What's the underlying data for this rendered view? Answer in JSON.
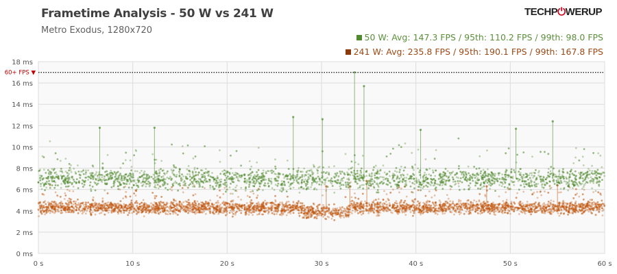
{
  "header": {
    "title": "Frametime Analysis - 50 W vs 241 W",
    "subtitle": "Metro  Exodus, 1280x720",
    "logo": "TECHPOWERUP"
  },
  "colors": {
    "s50": "#4f8a2e",
    "s241": "#c0560f",
    "legend241": "#8b3a0e",
    "fps_line": "#c00000",
    "grid": "#dcdcdc"
  },
  "chart_data": {
    "type": "scatter",
    "title": "Frametime Analysis - 50 W vs 241 W",
    "xlabel": "",
    "ylabel": "",
    "xlim": [
      0,
      60
    ],
    "ylim": [
      0,
      18
    ],
    "x_ticks": [
      0,
      10,
      20,
      30,
      40,
      50,
      60
    ],
    "x_tick_labels": [
      "0 s",
      "10 s",
      "20 s",
      "30 s",
      "40 s",
      "50 s",
      "60 s"
    ],
    "y_ticks": [
      0,
      2,
      4,
      6,
      8,
      10,
      12,
      14,
      16,
      18
    ],
    "y_tick_labels": [
      "0 ms",
      "2 ms",
      "4 ms",
      "6 ms",
      "8 ms",
      "10 ms",
      "12 ms",
      "14 ms",
      "16 ms",
      "18 ms"
    ],
    "reference_line": {
      "value": 16.67,
      "label": "60+ FPS ▼"
    },
    "legend_position": "top-right",
    "series": [
      {
        "name": "50 W",
        "legend": "50 W: Avg: 147.3 FPS / 95th: 110.2 FPS / 99th: 98.0 FPS",
        "typical_ms": 7.0,
        "spread_ms": 1.0,
        "spikes": [
          [
            33.5,
            17.0
          ],
          [
            34.5,
            15.7
          ],
          [
            27,
            12.8
          ],
          [
            30.1,
            12.6
          ],
          [
            54.5,
            12.4
          ],
          [
            6.5,
            11.8
          ],
          [
            12.3,
            11.8
          ],
          [
            40.5,
            11.6
          ],
          [
            50.6,
            11.7
          ]
        ]
      },
      {
        "name": "241 W",
        "legend": "241 W: Avg: 235.8 FPS / 95th: 190.1 FPS / 99th: 167.8 FPS",
        "typical_ms": 4.3,
        "spread_ms": 0.6,
        "spikes": [
          [
            34.8,
            6.8
          ],
          [
            33,
            6.3
          ],
          [
            30.5,
            6.3
          ],
          [
            47.5,
            6.3
          ],
          [
            55,
            6.4
          ]
        ]
      }
    ]
  }
}
